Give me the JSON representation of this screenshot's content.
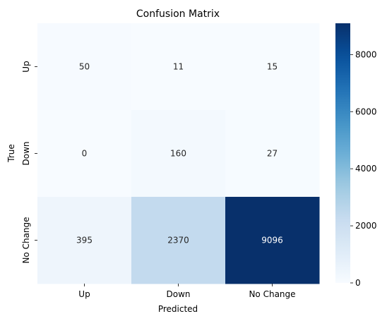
{
  "chart_data": {
    "type": "heatmap",
    "title": "Confusion Matrix",
    "xlabel": "Predicted",
    "ylabel": "True",
    "x_categories": [
      "Up",
      "Down",
      "No Change"
    ],
    "y_categories": [
      "Up",
      "Down",
      "No Change"
    ],
    "values": [
      [
        50,
        11,
        15
      ],
      [
        0,
        160,
        27
      ],
      [
        395,
        2370,
        9096
      ]
    ],
    "colormap": "Blues",
    "color_range": [
      0,
      9096
    ],
    "colorbar_ticks": [
      0,
      2000,
      4000,
      6000,
      8000
    ],
    "annotation_light_color": "#262626",
    "annotation_dark_color": "#ffffff"
  }
}
